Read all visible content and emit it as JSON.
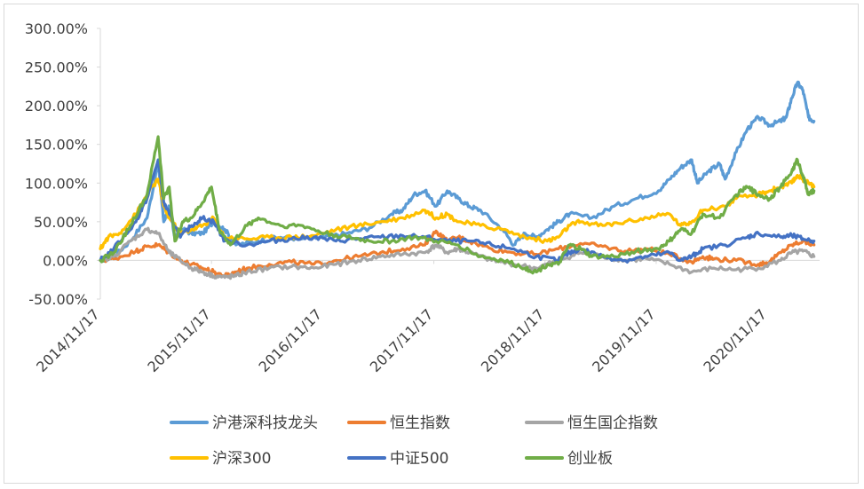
{
  "chart_data": {
    "type": "line",
    "title": "",
    "xlabel": "",
    "ylabel": "",
    "ylim": [
      -0.5,
      3.0
    ],
    "y_tick_labels": [
      "300.00%",
      "250.00%",
      "200.00%",
      "150.00%",
      "100.00%",
      "50.00%",
      "0.00%",
      "-50.00%"
    ],
    "y_ticks": [
      3.0,
      2.5,
      2.0,
      1.5,
      1.0,
      0.5,
      0.0,
      -0.5
    ],
    "x_tick_labels": [
      "2014/11/17",
      "2015/11/17",
      "2016/11/17",
      "2017/11/17",
      "2018/11/17",
      "2019/11/17",
      "2020/11/17"
    ],
    "x_range": [
      2014.88,
      2021.35
    ],
    "x_ticks": [
      2014.88,
      2015.88,
      2016.88,
      2017.88,
      2018.88,
      2019.88,
      2020.88
    ],
    "legend_position": "bottom",
    "series": [
      {
        "name": "沪港深科技龙头",
        "color": "#5b9bd5",
        "x": [
          2014.88,
          2015.0,
          2015.15,
          2015.3,
          2015.4,
          2015.45,
          2015.5,
          2015.55,
          2015.62,
          2015.7,
          2015.8,
          2015.9,
          2016.0,
          2016.1,
          2016.3,
          2016.5,
          2016.7,
          2016.9,
          2017.1,
          2017.3,
          2017.5,
          2017.6,
          2017.7,
          2017.8,
          2017.9,
          2018.0,
          2018.1,
          2018.2,
          2018.3,
          2018.5,
          2018.6,
          2018.7,
          2018.8,
          2018.9,
          2019.0,
          2019.1,
          2019.3,
          2019.5,
          2019.7,
          2019.9,
          2020.0,
          2020.1,
          2020.2,
          2020.25,
          2020.35,
          2020.45,
          2020.5,
          2020.6,
          2020.7,
          2020.8,
          2020.9,
          2021.0,
          2021.05,
          2021.1,
          2021.15,
          2021.2,
          2021.25,
          2021.3
        ],
        "y": [
          0.0,
          0.05,
          0.25,
          0.55,
          1.25,
          0.5,
          0.7,
          0.3,
          0.4,
          0.35,
          0.35,
          0.5,
          0.4,
          0.2,
          0.25,
          0.3,
          0.28,
          0.3,
          0.35,
          0.42,
          0.6,
          0.65,
          0.85,
          0.9,
          0.7,
          0.9,
          0.8,
          0.7,
          0.65,
          0.4,
          0.2,
          0.35,
          0.3,
          0.4,
          0.5,
          0.6,
          0.55,
          0.7,
          0.8,
          0.9,
          1.05,
          1.2,
          1.3,
          1.0,
          1.15,
          1.25,
          1.05,
          1.4,
          1.7,
          1.85,
          1.75,
          1.8,
          1.85,
          2.1,
          2.3,
          2.2,
          1.85,
          1.8
        ]
      },
      {
        "name": "恒生指数",
        "color": "#ed7d31",
        "x": [
          2014.88,
          2015.0,
          2015.2,
          2015.3,
          2015.4,
          2015.5,
          2015.6,
          2015.7,
          2015.8,
          2015.9,
          2016.0,
          2016.1,
          2016.2,
          2016.4,
          2016.6,
          2016.8,
          2017.0,
          2017.2,
          2017.4,
          2017.6,
          2017.8,
          2017.9,
          2018.0,
          2018.1,
          2018.2,
          2018.4,
          2018.6,
          2018.8,
          2019.0,
          2019.2,
          2019.4,
          2019.6,
          2019.8,
          2020.0,
          2020.2,
          2020.3,
          2020.4,
          2020.6,
          2020.8,
          2020.9,
          2021.0,
          2021.1,
          2021.2,
          2021.3
        ],
        "y": [
          0.0,
          0.02,
          0.12,
          0.18,
          0.2,
          0.1,
          0.0,
          -0.05,
          -0.1,
          -0.15,
          -0.2,
          -0.15,
          -0.1,
          -0.05,
          -0.02,
          -0.05,
          0.0,
          0.05,
          0.1,
          0.15,
          0.2,
          0.38,
          0.25,
          0.3,
          0.25,
          0.15,
          0.1,
          0.08,
          0.15,
          0.22,
          0.18,
          0.12,
          0.15,
          0.08,
          -0.02,
          0.05,
          0.02,
          0.0,
          -0.05,
          -0.02,
          0.1,
          0.2,
          0.25,
          0.2
        ]
      },
      {
        "name": "恒生国企指数",
        "color": "#a5a5a5",
        "x": [
          2014.88,
          2015.0,
          2015.15,
          2015.3,
          2015.4,
          2015.5,
          2015.6,
          2015.7,
          2015.8,
          2015.9,
          2016.0,
          2016.1,
          2016.2,
          2016.4,
          2016.6,
          2016.8,
          2017.0,
          2017.2,
          2017.4,
          2017.6,
          2017.8,
          2017.9,
          2018.0,
          2018.1,
          2018.2,
          2018.4,
          2018.6,
          2018.8,
          2019.0,
          2019.2,
          2019.4,
          2019.6,
          2019.8,
          2020.0,
          2020.2,
          2020.4,
          2020.6,
          2020.8,
          2021.0,
          2021.1,
          2021.2,
          2021.3
        ],
        "y": [
          0.0,
          0.05,
          0.25,
          0.4,
          0.35,
          0.1,
          0.0,
          -0.1,
          -0.15,
          -0.2,
          -0.22,
          -0.2,
          -0.15,
          -0.1,
          -0.08,
          -0.1,
          -0.05,
          0.0,
          0.05,
          0.08,
          0.1,
          0.2,
          0.1,
          0.15,
          0.1,
          0.0,
          -0.05,
          -0.1,
          0.0,
          0.1,
          0.05,
          0.0,
          0.02,
          -0.05,
          -0.15,
          -0.1,
          -0.12,
          -0.1,
          0.0,
          0.1,
          0.12,
          0.05
        ]
      },
      {
        "name": "沪深300",
        "color": "#ffc000",
        "x": [
          2014.88,
          2014.95,
          2015.05,
          2015.2,
          2015.3,
          2015.4,
          2015.45,
          2015.5,
          2015.6,
          2015.7,
          2015.8,
          2015.9,
          2016.0,
          2016.2,
          2016.4,
          2016.6,
          2016.8,
          2017.0,
          2017.2,
          2017.4,
          2017.6,
          2017.8,
          2017.9,
          2018.0,
          2018.1,
          2018.3,
          2018.5,
          2018.7,
          2018.9,
          2019.0,
          2019.1,
          2019.2,
          2019.4,
          2019.6,
          2019.8,
          2020.0,
          2020.1,
          2020.2,
          2020.3,
          2020.5,
          2020.6,
          2020.8,
          2020.9,
          2021.0,
          2021.1,
          2021.15,
          2021.2,
          2021.25,
          2021.3
        ],
        "y": [
          0.15,
          0.3,
          0.35,
          0.6,
          0.85,
          1.05,
          0.7,
          0.55,
          0.35,
          0.4,
          0.45,
          0.55,
          0.3,
          0.28,
          0.3,
          0.3,
          0.32,
          0.4,
          0.45,
          0.5,
          0.55,
          0.65,
          0.55,
          0.6,
          0.5,
          0.45,
          0.4,
          0.3,
          0.25,
          0.3,
          0.45,
          0.5,
          0.45,
          0.5,
          0.55,
          0.6,
          0.45,
          0.5,
          0.65,
          0.7,
          0.8,
          0.85,
          0.9,
          0.95,
          1.0,
          1.1,
          1.05,
          1.0,
          0.95
        ]
      },
      {
        "name": "中证500",
        "color": "#4472c4",
        "x": [
          2014.88,
          2015.0,
          2015.2,
          2015.3,
          2015.4,
          2015.45,
          2015.5,
          2015.6,
          2015.7,
          2015.8,
          2015.9,
          2016.0,
          2016.2,
          2016.4,
          2016.6,
          2016.8,
          2017.0,
          2017.2,
          2017.4,
          2017.6,
          2017.8,
          2018.0,
          2018.2,
          2018.4,
          2018.6,
          2018.8,
          2019.0,
          2019.1,
          2019.2,
          2019.4,
          2019.6,
          2019.8,
          2020.0,
          2020.1,
          2020.2,
          2020.3,
          2020.5,
          2020.7,
          2020.8,
          2021.0,
          2021.1,
          2021.2,
          2021.3
        ],
        "y": [
          0.0,
          0.15,
          0.5,
          0.8,
          1.3,
          0.75,
          0.6,
          0.3,
          0.45,
          0.55,
          0.5,
          0.25,
          0.2,
          0.25,
          0.28,
          0.3,
          0.25,
          0.28,
          0.3,
          0.32,
          0.3,
          0.25,
          0.25,
          0.2,
          0.15,
          0.05,
          0.0,
          0.1,
          0.15,
          0.05,
          0.0,
          0.05,
          0.1,
          0.0,
          0.05,
          0.15,
          0.2,
          0.3,
          0.35,
          0.3,
          0.32,
          0.28,
          0.25
        ]
      },
      {
        "name": "创业板",
        "color": "#70ad47",
        "x": [
          2014.88,
          2015.0,
          2015.15,
          2015.3,
          2015.4,
          2015.45,
          2015.5,
          2015.55,
          2015.62,
          2015.7,
          2015.8,
          2015.88,
          2015.95,
          2016.05,
          2016.2,
          2016.3,
          2016.5,
          2016.7,
          2016.9,
          2017.1,
          2017.3,
          2017.5,
          2017.7,
          2017.9,
          2018.1,
          2018.3,
          2018.5,
          2018.7,
          2018.8,
          2018.9,
          2019.0,
          2019.1,
          2019.2,
          2019.3,
          2019.5,
          2019.7,
          2019.9,
          2020.0,
          2020.1,
          2020.2,
          2020.3,
          2020.45,
          2020.6,
          2020.7,
          2020.8,
          2020.9,
          2021.0,
          2021.1,
          2021.15,
          2021.2,
          2021.25,
          2021.3
        ],
        "y": [
          0.0,
          0.1,
          0.45,
          0.85,
          1.6,
          0.8,
          0.95,
          0.25,
          0.5,
          0.55,
          0.75,
          0.95,
          0.4,
          0.2,
          0.45,
          0.55,
          0.45,
          0.45,
          0.35,
          0.3,
          0.25,
          0.25,
          0.3,
          0.25,
          0.2,
          0.05,
          0.0,
          -0.1,
          -0.15,
          -0.05,
          -0.05,
          0.2,
          0.15,
          0.05,
          0.05,
          0.12,
          0.15,
          0.25,
          0.4,
          0.35,
          0.6,
          0.55,
          0.85,
          0.95,
          0.85,
          0.8,
          0.95,
          1.15,
          1.3,
          1.1,
          0.85,
          0.9
        ]
      }
    ]
  }
}
